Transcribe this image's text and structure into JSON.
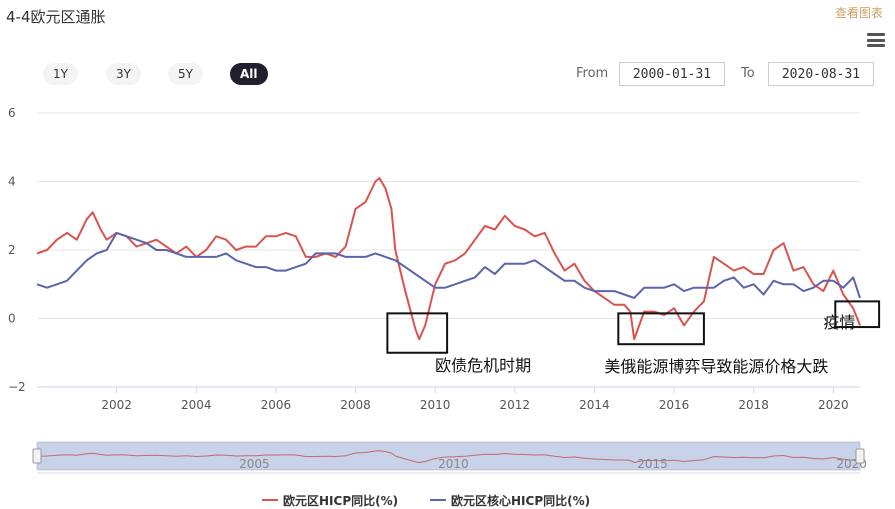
{
  "header": {
    "title": "4-4欧元区通胀",
    "view_chart_link": "查看图表"
  },
  "range_selector": {
    "buttons": [
      "1Y",
      "3Y",
      "5Y",
      "All"
    ],
    "active": "All",
    "from_label": "From",
    "from_value": "2000-01-31",
    "to_label": "To",
    "to_value": "2020-08-31"
  },
  "colors": {
    "headline": "#d9534f",
    "core": "#5b64ad"
  },
  "chart_data": {
    "type": "line",
    "title": "4-4欧元区通胀",
    "xlim": [
      2000.0,
      2020.67
    ],
    "ylim": [
      -2,
      6
    ],
    "y_ticks": [
      -2,
      0,
      2,
      4,
      6
    ],
    "x_ticks": [
      2002,
      2004,
      2006,
      2008,
      2010,
      2012,
      2014,
      2016,
      2018,
      2020
    ],
    "grid": true,
    "legend_position": "bottom",
    "series": [
      {
        "name": "欧元区HICP同比(%)",
        "color": "#d9534f",
        "x": [
          2000.0,
          2000.25,
          2000.5,
          2000.75,
          2001.0,
          2001.25,
          2001.4,
          2001.6,
          2001.75,
          2002.0,
          2002.25,
          2002.5,
          2002.75,
          2003.0,
          2003.25,
          2003.5,
          2003.75,
          2004.0,
          2004.25,
          2004.5,
          2004.75,
          2005.0,
          2005.25,
          2005.5,
          2005.75,
          2006.0,
          2006.25,
          2006.5,
          2006.75,
          2007.0,
          2007.25,
          2007.5,
          2007.75,
          2008.0,
          2008.25,
          2008.5,
          2008.6,
          2008.75,
          2008.9,
          2009.0,
          2009.25,
          2009.5,
          2009.6,
          2009.75,
          2010.0,
          2010.25,
          2010.5,
          2010.75,
          2011.0,
          2011.25,
          2011.5,
          2011.75,
          2012.0,
          2012.25,
          2012.5,
          2012.75,
          2013.0,
          2013.25,
          2013.5,
          2013.75,
          2014.0,
          2014.25,
          2014.5,
          2014.75,
          2014.9,
          2015.0,
          2015.25,
          2015.5,
          2015.75,
          2016.0,
          2016.25,
          2016.5,
          2016.75,
          2017.0,
          2017.25,
          2017.5,
          2017.75,
          2018.0,
          2018.25,
          2018.5,
          2018.75,
          2019.0,
          2019.25,
          2019.5,
          2019.75,
          2020.0,
          2020.25,
          2020.5,
          2020.67
        ],
        "values": [
          1.9,
          2.0,
          2.3,
          2.5,
          2.3,
          2.9,
          3.1,
          2.6,
          2.3,
          2.5,
          2.4,
          2.1,
          2.2,
          2.3,
          2.1,
          1.9,
          2.1,
          1.8,
          2.0,
          2.4,
          2.3,
          2.0,
          2.1,
          2.1,
          2.4,
          2.4,
          2.5,
          2.4,
          1.8,
          1.8,
          1.9,
          1.8,
          2.1,
          3.2,
          3.4,
          4.0,
          4.1,
          3.8,
          3.2,
          2.0,
          0.8,
          -0.3,
          -0.6,
          -0.2,
          1.0,
          1.6,
          1.7,
          1.9,
          2.3,
          2.7,
          2.6,
          3.0,
          2.7,
          2.6,
          2.4,
          2.5,
          1.9,
          1.4,
          1.6,
          1.1,
          0.8,
          0.6,
          0.4,
          0.4,
          0.2,
          -0.6,
          0.2,
          0.2,
          0.1,
          0.3,
          -0.2,
          0.2,
          0.5,
          1.8,
          1.6,
          1.4,
          1.5,
          1.3,
          1.3,
          2.0,
          2.2,
          1.4,
          1.5,
          1.0,
          0.8,
          1.4,
          0.7,
          0.3,
          -0.2
        ]
      },
      {
        "name": "欧元区核心HICP同比(%)",
        "color": "#5b64ad",
        "x": [
          2000.0,
          2000.25,
          2000.5,
          2000.75,
          2001.0,
          2001.25,
          2001.5,
          2001.75,
          2002.0,
          2002.25,
          2002.5,
          2002.75,
          2003.0,
          2003.25,
          2003.5,
          2003.75,
          2004.0,
          2004.25,
          2004.5,
          2004.75,
          2005.0,
          2005.25,
          2005.5,
          2005.75,
          2006.0,
          2006.25,
          2006.5,
          2006.75,
          2007.0,
          2007.25,
          2007.5,
          2007.75,
          2008.0,
          2008.25,
          2008.5,
          2008.75,
          2009.0,
          2009.25,
          2009.5,
          2009.75,
          2010.0,
          2010.25,
          2010.5,
          2010.75,
          2011.0,
          2011.25,
          2011.5,
          2011.75,
          2012.0,
          2012.25,
          2012.5,
          2012.75,
          2013.0,
          2013.25,
          2013.5,
          2013.75,
          2014.0,
          2014.25,
          2014.5,
          2014.75,
          2015.0,
          2015.25,
          2015.5,
          2015.75,
          2016.0,
          2016.25,
          2016.5,
          2016.75,
          2017.0,
          2017.25,
          2017.5,
          2017.75,
          2018.0,
          2018.25,
          2018.5,
          2018.75,
          2019.0,
          2019.25,
          2019.5,
          2019.75,
          2020.0,
          2020.25,
          2020.5,
          2020.67
        ],
        "values": [
          1.0,
          0.9,
          1.0,
          1.1,
          1.4,
          1.7,
          1.9,
          2.0,
          2.5,
          2.4,
          2.3,
          2.2,
          2.0,
          2.0,
          1.9,
          1.8,
          1.8,
          1.8,
          1.8,
          1.9,
          1.7,
          1.6,
          1.5,
          1.5,
          1.4,
          1.4,
          1.5,
          1.6,
          1.9,
          1.9,
          1.9,
          1.8,
          1.8,
          1.8,
          1.9,
          1.8,
          1.7,
          1.5,
          1.3,
          1.1,
          0.9,
          0.9,
          1.0,
          1.1,
          1.2,
          1.5,
          1.3,
          1.6,
          1.6,
          1.6,
          1.7,
          1.5,
          1.3,
          1.1,
          1.1,
          0.9,
          0.8,
          0.8,
          0.8,
          0.7,
          0.6,
          0.9,
          0.9,
          0.9,
          1.0,
          0.8,
          0.9,
          0.9,
          0.9,
          1.1,
          1.2,
          0.9,
          1.0,
          0.7,
          1.1,
          1.0,
          1.0,
          0.8,
          0.9,
          1.1,
          1.1,
          0.9,
          1.2,
          0.6
        ]
      }
    ],
    "annotations": [
      "欧债危机时期",
      "美俄能源博弈导致能源价格大跌",
      "疫情"
    ],
    "navigator_labels": [
      "2005",
      "2010",
      "2015",
      "2020"
    ]
  }
}
